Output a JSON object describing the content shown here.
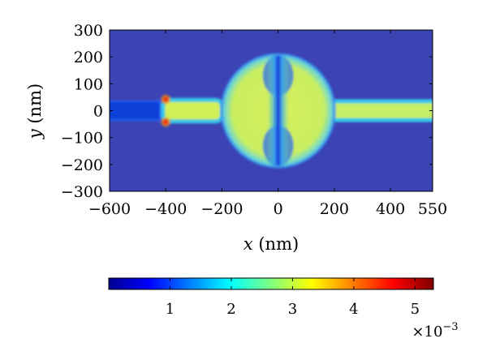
{
  "chart_data": {
    "type": "heatmap",
    "title": "",
    "xlabel_var": "x",
    "xlabel_unit": " (nm)",
    "ylabel_var": "y",
    "ylabel_unit": " (nm)",
    "xlim": [
      -600,
      550
    ],
    "ylim": [
      -300,
      300
    ],
    "xticks": [
      -600,
      -400,
      -200,
      0,
      200,
      400,
      550
    ],
    "xtick_labels": [
      "−600",
      "−400",
      "−200",
      "0",
      "200",
      "400",
      "550"
    ],
    "yticks": [
      300,
      200,
      100,
      0,
      -100,
      -200,
      -300
    ],
    "ytick_labels": [
      "300",
      "200",
      "100",
      "0",
      "−100",
      "−200",
      "−300"
    ],
    "grid": false,
    "colormap": "jet",
    "colorbar": {
      "orientation": "horizontal",
      "placement": "bottom",
      "range": [
        0,
        0.0053
      ],
      "ticks": [
        1,
        2,
        3,
        4,
        5
      ],
      "tick_labels": [
        "1",
        "2",
        "3",
        "4",
        "5"
      ],
      "multiplier_base": "×10",
      "multiplier_exp": "−3"
    },
    "structure": {
      "description_values_nm": true,
      "left_arm": {
        "x": [
          -600,
          -420
        ],
        "y_half_width": 35,
        "field": 0.3
      },
      "right_arm": {
        "x": [
          190,
          550
        ],
        "y_half_width": 35,
        "field": 2.6
      },
      "feed_wire": {
        "x": [
          -410,
          -240
        ],
        "y_half_width": 40,
        "field": 2.9
      },
      "disk": {
        "center": [
          0,
          0
        ],
        "radius": 205,
        "field": 2.85
      },
      "gap": {
        "x_half_width": 8,
        "field": 0.2
      },
      "hotspots": [
        {
          "x": -400,
          "y": 42,
          "field": 5.2
        },
        {
          "x": -400,
          "y": -42,
          "field": 5.2
        }
      ],
      "background_field": 0.1
    }
  },
  "colors": {
    "background": "#3c44b4",
    "colormap_stops": [
      "#00008f",
      "#0000ff",
      "#0080ff",
      "#00ffff",
      "#80ff80",
      "#ffff00",
      "#ff8000",
      "#ff0000",
      "#800000"
    ]
  }
}
